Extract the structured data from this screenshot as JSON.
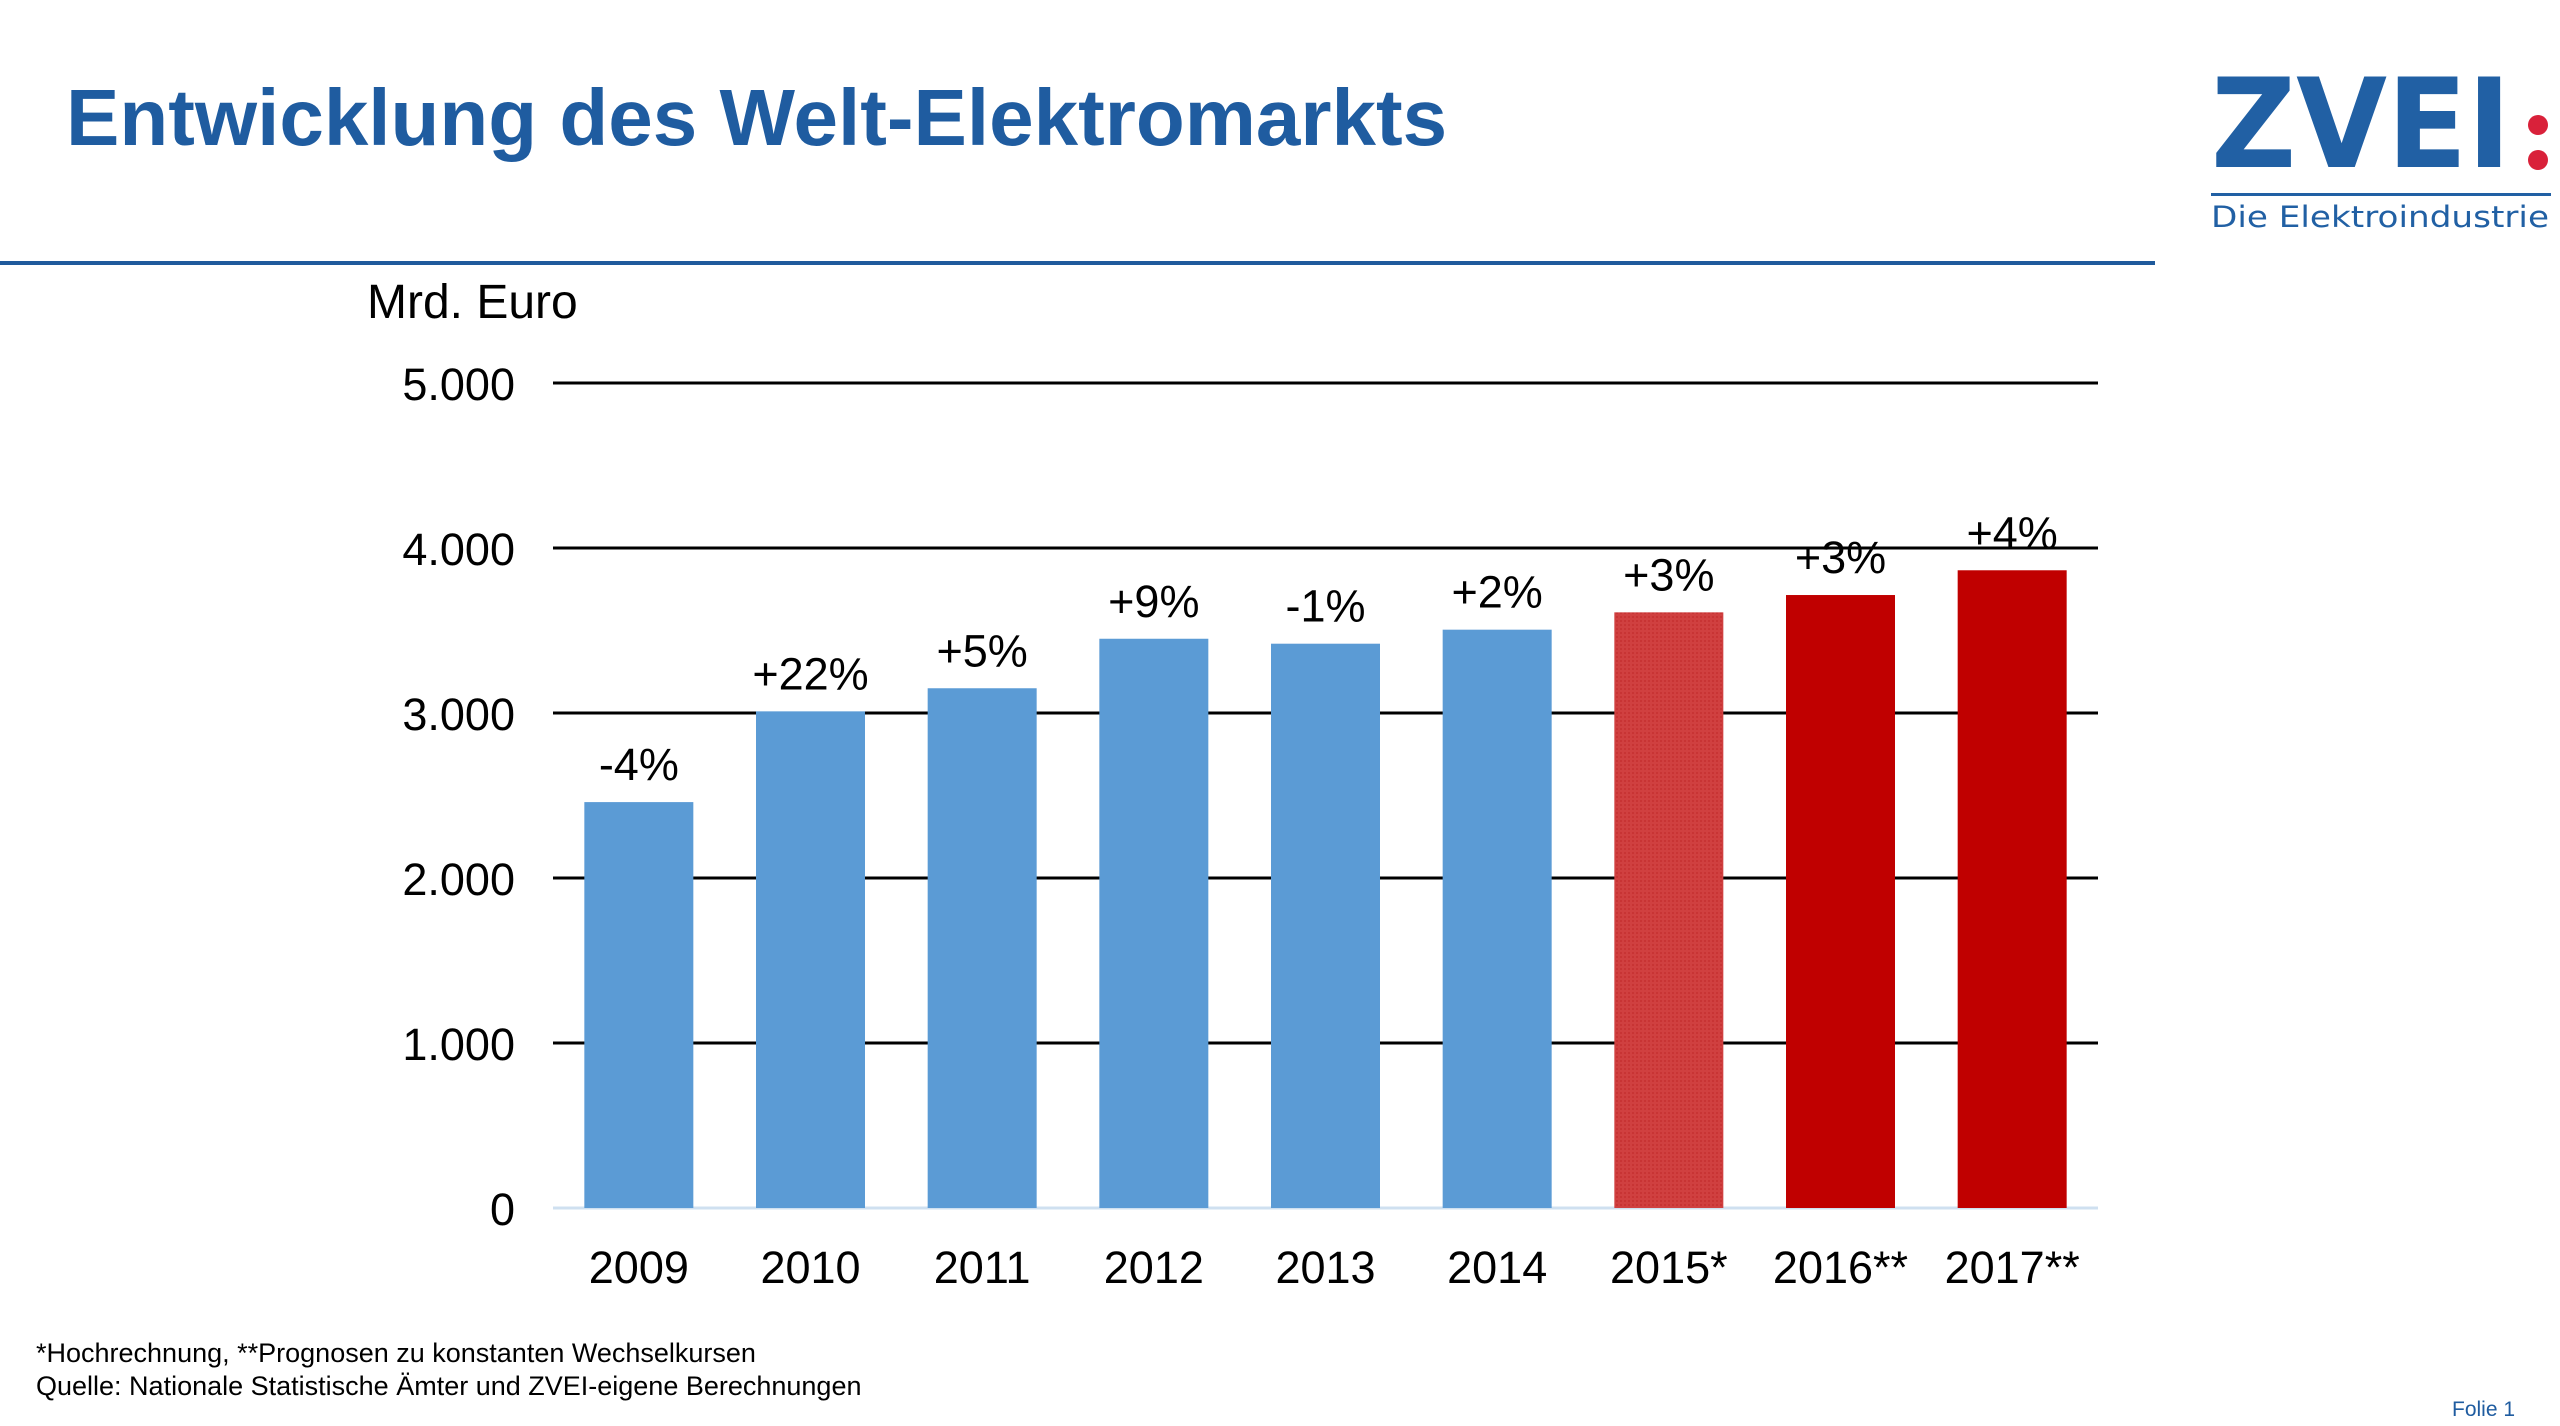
{
  "title": "Entwicklung des Welt-Elektromarkts",
  "logo": {
    "text": "ZVEI:",
    "tagline": "Die Elektroindustrie",
    "colors": {
      "blue": "#2160a4",
      "red": "#d9213a"
    }
  },
  "chart_data": {
    "type": "bar",
    "ylabel": "Mrd. Euro",
    "ylim": [
      0,
      5000
    ],
    "yticks": [
      0,
      1000,
      2000,
      3000,
      4000,
      5000
    ],
    "ytick_labels": [
      "0",
      "1.000",
      "2.000",
      "3.000",
      "4.000",
      "5.000"
    ],
    "grid": true,
    "categories": [
      "2009",
      "2010",
      "2011",
      "2012",
      "2013",
      "2014",
      "2015*",
      "2016**",
      "2017**"
    ],
    "values": [
      2460,
      3010,
      3150,
      3450,
      3420,
      3505,
      3610,
      3715,
      3865
    ],
    "data_labels": [
      "-4%",
      "+22%",
      "+5%",
      "+9%",
      "-1%",
      "+2%",
      "+3%",
      "+3%",
      "+4%"
    ],
    "bar_colors": [
      "#5b9bd5",
      "#5b9bd5",
      "#5b9bd5",
      "#5b9bd5",
      "#5b9bd5",
      "#5b9bd5",
      "#d04040",
      "#c00000",
      "#c00000"
    ]
  },
  "footnotes": [
    "*Hochrechnung, **Prognosen zu konstanten Wechselkursen",
    "Quelle: Nationale Statistische Ämter und ZVEI-eigene Berechnungen"
  ],
  "slide_number": "Folie 1"
}
